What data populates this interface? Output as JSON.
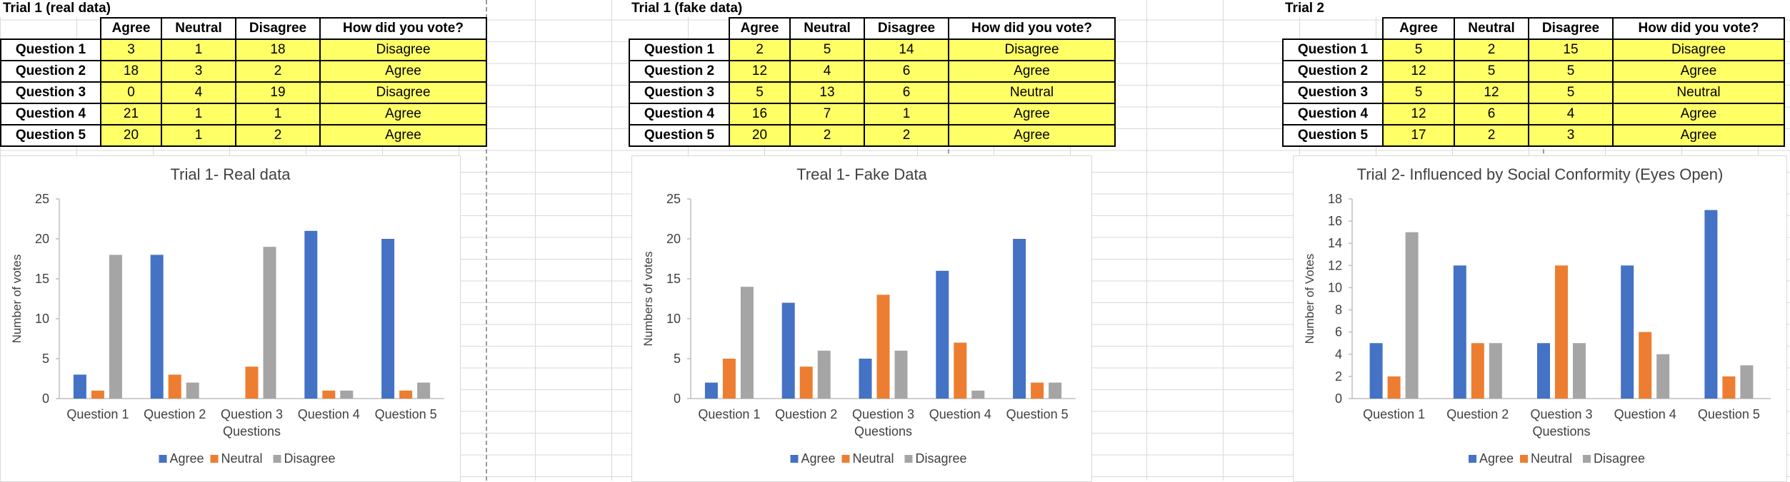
{
  "trials": [
    {
      "title": "Trial 1 (real data)",
      "columns": [
        "Agree",
        "Neutral",
        "Disagree",
        "How did you vote?"
      ],
      "rows": [
        {
          "label": "Question 1",
          "agree": "3",
          "neutral": "1",
          "disagree": "18",
          "vote": "Disagree"
        },
        {
          "label": "Question 2",
          "agree": "18",
          "neutral": "3",
          "disagree": "2",
          "vote": "Agree"
        },
        {
          "label": "Question 3",
          "agree": "0",
          "neutral": "4",
          "disagree": "19",
          "vote": "Disagree"
        },
        {
          "label": "Question 4",
          "agree": "21",
          "neutral": "1",
          "disagree": "1",
          "vote": "Agree"
        },
        {
          "label": "Question 5",
          "agree": "20",
          "neutral": "1",
          "disagree": "2",
          "vote": "Agree"
        }
      ]
    },
    {
      "title": "Trial 1 (fake data)",
      "columns": [
        "Agree",
        "Neutral",
        "Disagree",
        "How did you vote?"
      ],
      "rows": [
        {
          "label": "Question 1",
          "agree": "2",
          "neutral": "5",
          "disagree": "14",
          "vote": "Disagree"
        },
        {
          "label": "Question 2",
          "agree": "12",
          "neutral": "4",
          "disagree": "6",
          "vote": "Agree"
        },
        {
          "label": "Question 3",
          "agree": "5",
          "neutral": "13",
          "disagree": "6",
          "vote": "Neutral"
        },
        {
          "label": "Question 4",
          "agree": "16",
          "neutral": "7",
          "disagree": "1",
          "vote": "Agree"
        },
        {
          "label": "Question 5",
          "agree": "20",
          "neutral": "2",
          "disagree": "2",
          "vote": "Agree"
        }
      ]
    },
    {
      "title": "Trial 2",
      "columns": [
        "Agree",
        "Neutral",
        "Disagree",
        "How did you vote?"
      ],
      "rows": [
        {
          "label": "Question 1",
          "agree": "5",
          "neutral": "2",
          "disagree": "15",
          "vote": "Disagree"
        },
        {
          "label": "Question 2",
          "agree": "12",
          "neutral": "5",
          "disagree": "5",
          "vote": "Agree"
        },
        {
          "label": "Question 3",
          "agree": "5",
          "neutral": "12",
          "disagree": "5",
          "vote": "Neutral"
        },
        {
          "label": "Question 4",
          "agree": "12",
          "neutral": "6",
          "disagree": "4",
          "vote": "Agree"
        },
        {
          "label": "Question 5",
          "agree": "17",
          "neutral": "2",
          "disagree": "3",
          "vote": "Agree"
        }
      ]
    }
  ],
  "colors": {
    "agree": "#4472c4",
    "neutral": "#ed7d31",
    "disagree": "#a5a5a5",
    "cell_highlight": "#ffff66"
  },
  "chart_data": [
    {
      "type": "bar",
      "title": "Trial 1- Real data",
      "xlabel": "Questions",
      "ylabel": "Number of votes",
      "categories": [
        "Question 1",
        "Question 2",
        "Question 3",
        "Question 4",
        "Question 5"
      ],
      "series": [
        {
          "name": "Agree",
          "values": [
            3,
            18,
            0,
            21,
            20
          ]
        },
        {
          "name": "Neutral",
          "values": [
            1,
            3,
            4,
            1,
            1
          ]
        },
        {
          "name": "Disagree",
          "values": [
            18,
            2,
            19,
            1,
            2
          ]
        }
      ],
      "ylim": [
        0,
        25
      ],
      "yticks": [
        0,
        5,
        10,
        15,
        20,
        25
      ],
      "legend": "bottom",
      "grid": false
    },
    {
      "type": "bar",
      "title": "Treal 1- Fake Data",
      "xlabel": "Questions",
      "ylabel": "Numbers of votes",
      "categories": [
        "Question 1",
        "Question 2",
        "Question 3",
        "Question 4",
        "Question 5"
      ],
      "series": [
        {
          "name": "Agree",
          "values": [
            2,
            12,
            5,
            16,
            20
          ]
        },
        {
          "name": "Neutral",
          "values": [
            5,
            4,
            13,
            7,
            2
          ]
        },
        {
          "name": "Disagree",
          "values": [
            14,
            6,
            6,
            1,
            2
          ]
        }
      ],
      "ylim": [
        0,
        25
      ],
      "yticks": [
        0,
        5,
        10,
        15,
        20,
        25
      ],
      "legend": "bottom",
      "grid": false
    },
    {
      "type": "bar",
      "title": "Trial 2- Influenced by Social Conformity (Eyes Open)",
      "xlabel": "Questions",
      "ylabel": "Number of Votes",
      "categories": [
        "Question 1",
        "Question 2",
        "Question 3",
        "Question 4",
        "Question 5"
      ],
      "series": [
        {
          "name": "Agree",
          "values": [
            5,
            12,
            5,
            12,
            17
          ]
        },
        {
          "name": "Neutral",
          "values": [
            2,
            5,
            12,
            6,
            2
          ]
        },
        {
          "name": "Disagree",
          "values": [
            15,
            5,
            5,
            4,
            3
          ]
        }
      ],
      "ylim": [
        0,
        18
      ],
      "yticks": [
        0,
        2,
        4,
        6,
        8,
        10,
        12,
        14,
        16,
        18
      ],
      "legend": "bottom",
      "grid": false
    }
  ]
}
